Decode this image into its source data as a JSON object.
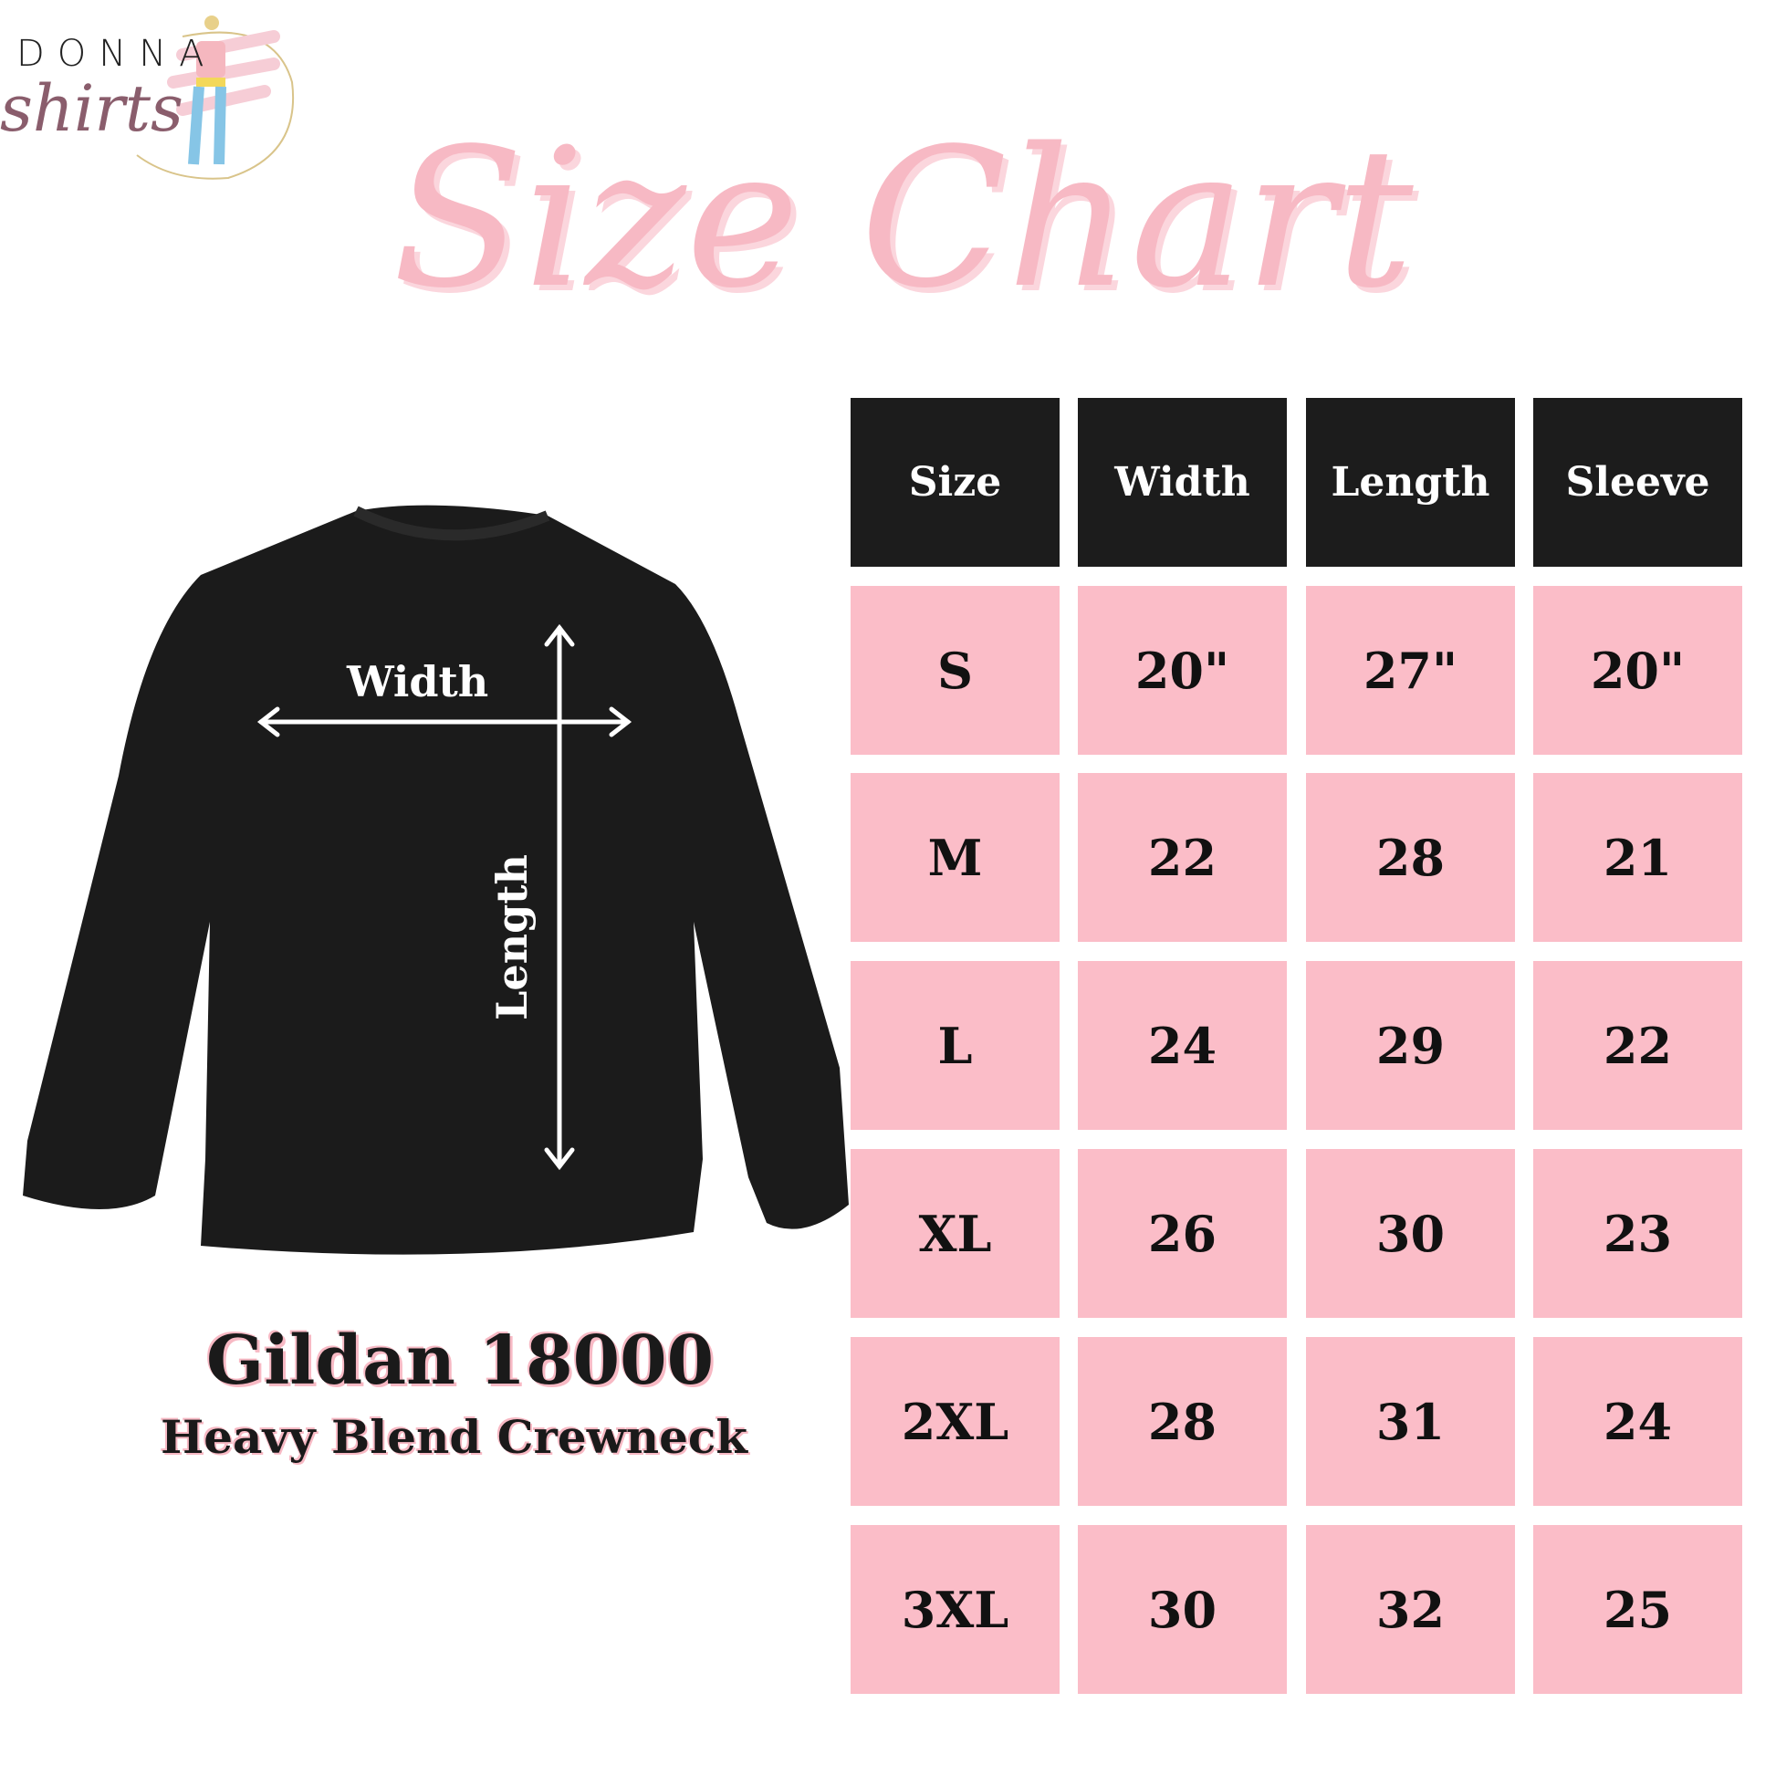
{
  "logo": {
    "line1": "DONNA",
    "line2": "shirts"
  },
  "title": "Size Chart",
  "diagram": {
    "width_label": "Width",
    "length_label": "Length"
  },
  "product": {
    "name": "Gildan 18000",
    "subtitle": "Heavy Blend Crewneck"
  },
  "colors": {
    "pink": "#fbbdc8",
    "header": "#1c1c1c",
    "title_pink": "#f7b9c4"
  },
  "table": {
    "headers": [
      "Size",
      "Width",
      "Length",
      "Sleeve"
    ],
    "rows": [
      [
        "S",
        "20\"",
        "27\"",
        "20\""
      ],
      [
        "M",
        "22",
        "28",
        "21"
      ],
      [
        "L",
        "24",
        "29",
        "22"
      ],
      [
        "XL",
        "26",
        "30",
        "23"
      ],
      [
        "2XL",
        "28",
        "31",
        "24"
      ],
      [
        "3XL",
        "30",
        "32",
        "25"
      ]
    ]
  }
}
